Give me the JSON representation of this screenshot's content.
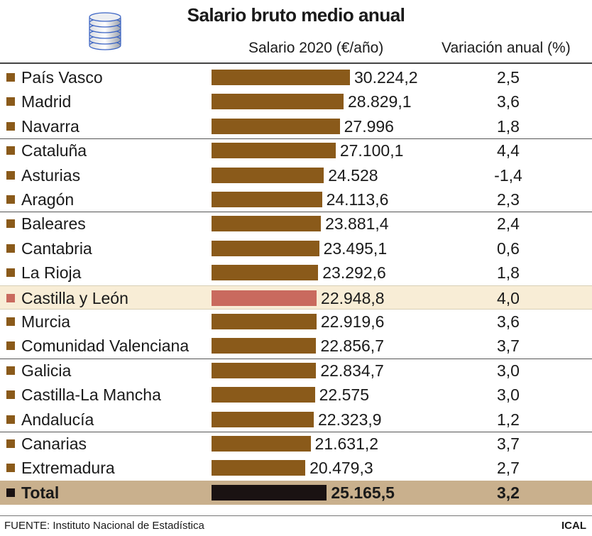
{
  "title": "Salario bruto medio anual",
  "icon": "coin-stack-icon",
  "headers": {
    "salary": "Salario 2020 (€/año)",
    "variation": "Variación anual (%)"
  },
  "colors": {
    "bar": "#8a5a1a",
    "highlight_bar": "#c96a5e",
    "total_bar": "#1a1212",
    "marker": "#8a5a1a"
  },
  "chart_data": {
    "type": "bar",
    "title": "Salario bruto medio anual",
    "categories": [
      "País Vasco",
      "Madrid",
      "Navarra",
      "Cataluña",
      "Asturias",
      "Aragón",
      "Baleares",
      "Cantabria",
      "La Rioja",
      "Castilla y León",
      "Murcia",
      "Comunidad Valenciana",
      "Galicia",
      "Castilla-La Mancha",
      "Andalucía",
      "Canarias",
      "Extremadura",
      "Total"
    ],
    "series": [
      {
        "name": "Salario 2020 (€/año)",
        "values": [
          30224.2,
          28829.1,
          27996,
          27100.1,
          24528,
          24113.6,
          23881.4,
          23495.1,
          23292.6,
          22948.8,
          22919.6,
          22856.7,
          22834.7,
          22575,
          22323.9,
          21631.2,
          20479.3,
          25165.5
        ]
      },
      {
        "name": "Variación anual (%)",
        "values": [
          2.5,
          3.6,
          1.8,
          4.4,
          -1.4,
          2.3,
          2.4,
          0.6,
          1.8,
          4.0,
          3.6,
          3.7,
          3.0,
          3.0,
          1.2,
          3.7,
          2.7,
          3.2
        ]
      }
    ],
    "salary_labels": [
      "30.224,2",
      "28.829,1",
      "27.996",
      "27.100,1",
      "24.528",
      "24.113,6",
      "23.881,4",
      "23.495,1",
      "23.292,6",
      "22.948,8",
      "22.919,6",
      "22.856,7",
      "22.834,7",
      "22.575",
      "22.323,9",
      "21.631,2",
      "20.479,3",
      "25.165,5"
    ],
    "variation_labels": [
      "2,5",
      "3,6",
      "1,8",
      "4,4",
      "-1,4",
      "2,3",
      "2,4",
      "0,6",
      "1,8",
      "4,0",
      "3,6",
      "3,7",
      "3,0",
      "3,0",
      "1,2",
      "3,7",
      "2,7",
      "3,2"
    ],
    "highlight": "Castilla y León",
    "total": "Total",
    "groups_of": 3,
    "grid": false,
    "legend": "none"
  },
  "footer": {
    "source": "FUENTE: Instituto Nacional de Estadística",
    "agency": "ICAL"
  }
}
